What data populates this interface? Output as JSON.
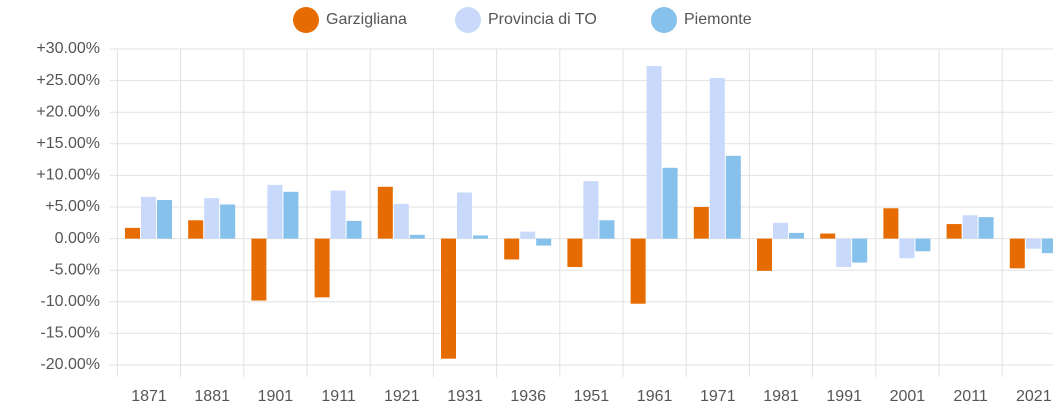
{
  "chart_data": {
    "type": "bar",
    "categories": [
      "1871",
      "1881",
      "1901",
      "1911",
      "1921",
      "1931",
      "1936",
      "1951",
      "1961",
      "1971",
      "1981",
      "1991",
      "2001",
      "2011",
      "2021"
    ],
    "series": [
      {
        "name": "Garzigliana",
        "color": "#e66b00",
        "values": [
          1.7,
          2.9,
          -9.8,
          -9.3,
          8.2,
          -19.0,
          -3.3,
          -4.5,
          -10.3,
          5.0,
          -5.1,
          0.8,
          4.8,
          2.3,
          -4.7
        ]
      },
      {
        "name": "Provincia di TO",
        "color": "#c9d9fb",
        "values": [
          6.6,
          6.4,
          8.5,
          7.6,
          5.5,
          7.3,
          1.1,
          9.1,
          27.3,
          25.4,
          2.5,
          -4.5,
          -3.1,
          3.7,
          -1.6
        ]
      },
      {
        "name": "Piemonte",
        "color": "#85c1ea",
        "values": [
          6.1,
          5.4,
          7.4,
          2.8,
          0.6,
          0.5,
          -1.1,
          2.9,
          11.2,
          13.1,
          0.9,
          -3.8,
          -2.0,
          3.4,
          -2.3
        ]
      }
    ],
    "ylim": [
      -20,
      30
    ],
    "yticks": [
      {
        "value": 30,
        "label": "+30.00%"
      },
      {
        "value": 25,
        "label": "+25.00%"
      },
      {
        "value": 20,
        "label": "+20.00%"
      },
      {
        "value": 15,
        "label": "+15.00%"
      },
      {
        "value": 10,
        "label": "+10.00%"
      },
      {
        "value": 5,
        "label": "+5.00%"
      },
      {
        "value": 0,
        "label": "0.00%"
      },
      {
        "value": -5,
        "label": "-5.00%"
      },
      {
        "value": -10,
        "label": "-10.00%"
      },
      {
        "value": -15,
        "label": "-15.00%"
      },
      {
        "value": -20,
        "label": "-20.00%"
      }
    ],
    "grid": true,
    "legend": "top"
  }
}
